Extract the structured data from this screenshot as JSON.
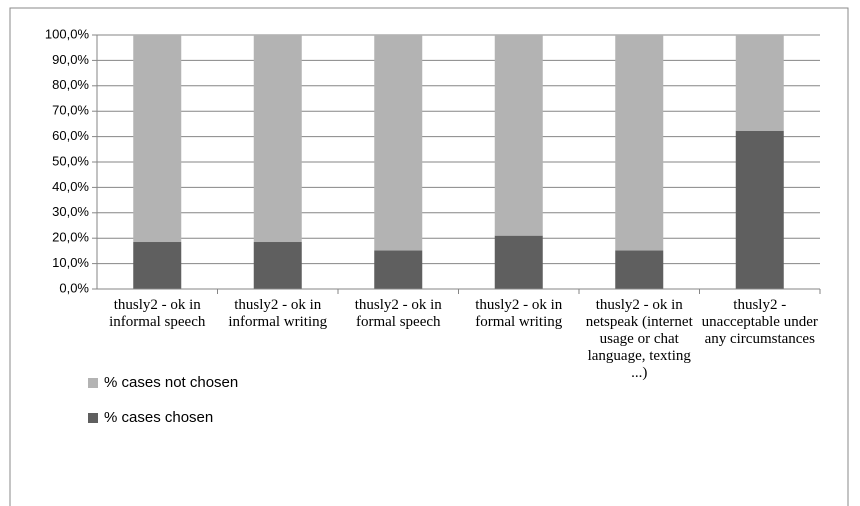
{
  "chart_data": {
    "type": "stacked_bar",
    "categories": [
      "thusly2 - ok in informal speech",
      "thusly2 - ok in informal writing",
      "thusly2 - ok in formal speech",
      "thusly2 - ok in formal writing",
      "thusly2 - ok in netspeak (internet usage or chat language, texting ...)",
      "thusly2 - unacceptable under any circumstances"
    ],
    "series": [
      {
        "name": "% cases chosen",
        "color": "#5f5f5f",
        "values": [
          18.5,
          18.5,
          15.2,
          21.0,
          15.2,
          62.3
        ]
      },
      {
        "name": "% cases not chosen",
        "color": "#b3b3b3",
        "values": [
          81.5,
          81.5,
          84.8,
          79.0,
          84.8,
          37.7
        ]
      }
    ],
    "ylim": [
      0,
      100
    ],
    "yticks": [
      {
        "value": 0,
        "label": "0,0%"
      },
      {
        "value": 10,
        "label": "10,0%"
      },
      {
        "value": 20,
        "label": "20,0%"
      },
      {
        "value": 30,
        "label": "30,0%"
      },
      {
        "value": 40,
        "label": "40,0%"
      },
      {
        "value": 50,
        "label": "50,0%"
      },
      {
        "value": 60,
        "label": "60,0%"
      },
      {
        "value": 70,
        "label": "70,0%"
      },
      {
        "value": 80,
        "label": "80,0%"
      },
      {
        "value": 90,
        "label": "90,0%"
      },
      {
        "value": 100,
        "label": "100,0%"
      }
    ],
    "grid": true
  }
}
